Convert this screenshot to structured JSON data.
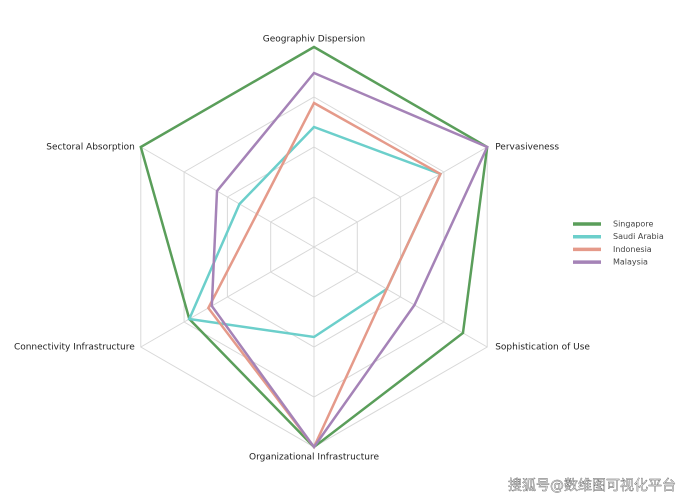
{
  "chart_data": {
    "type": "radar",
    "categories": [
      "Geographiv Dispersion",
      "Pervasiveness",
      "Sophistication of Use",
      "Organizational Infrastructure",
      "Connectivity Infrastructure",
      "Sectoral Absorption"
    ],
    "series": [
      {
        "name": "Singapore",
        "color": "#5a9e5a",
        "values": [
          100,
          100,
          86,
          100,
          72,
          100
        ]
      },
      {
        "name": "Saudi Arabia",
        "color": "#6ccfcb",
        "values": [
          60,
          73,
          42,
          45,
          72,
          43
        ]
      },
      {
        "name": "Indonesia",
        "color": "#e59a8a",
        "values": [
          72,
          73,
          42,
          100,
          61,
          33
        ]
      },
      {
        "name": "Malaysia",
        "color": "#a583b7",
        "values": [
          87,
          100,
          58,
          100,
          59,
          56
        ]
      }
    ],
    "ylim": [
      0,
      100
    ],
    "yticks": [
      25,
      50,
      75,
      100
    ],
    "grid": true,
    "legend": "right",
    "watermark": "搜狐号@数维图可视化平台"
  }
}
